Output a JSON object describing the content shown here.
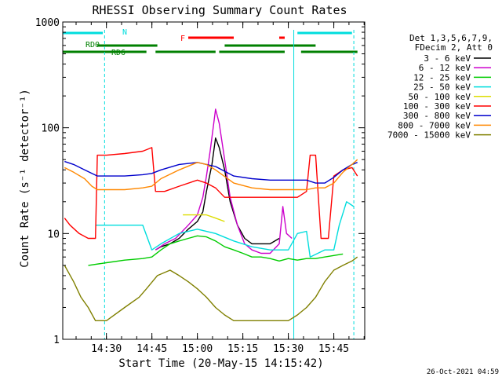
{
  "chart_data": {
    "type": "line",
    "title": "RHESSI Observing Summary Count Rates",
    "xlabel": "Start Time (20-May-15 14:15:42)",
    "ylabel": "Count Rate (s⁻¹ detector⁻¹)",
    "ylog": true,
    "xlim": [
      14.26,
      15.92
    ],
    "ylim": [
      1,
      1000
    ],
    "x_ticks": [
      {
        "value": 14.5,
        "label": "14:30"
      },
      {
        "value": 14.75,
        "label": "14:45"
      },
      {
        "value": 15.0,
        "label": "15:00"
      },
      {
        "value": 15.25,
        "label": "15:15"
      },
      {
        "value": 15.5,
        "label": "15:30"
      },
      {
        "value": 15.75,
        "label": "15:45"
      }
    ],
    "y_ticks": [
      {
        "value": 1,
        "label": "1"
      },
      {
        "value": 10,
        "label": "10"
      },
      {
        "value": 100,
        "label": "100"
      },
      {
        "value": 1000,
        "label": "1000"
      }
    ],
    "legend": {
      "position": "right",
      "header": [
        "Det 1,3,5,6,7,9,",
        "FDecim 2, Att 0"
      ]
    },
    "series": [
      {
        "name": "3 - 6 keV",
        "color": "#000000",
        "points": [
          [
            14.77,
            7
          ],
          [
            14.8,
            7.5
          ],
          [
            14.85,
            8
          ],
          [
            14.9,
            9
          ],
          [
            14.95,
            11
          ],
          [
            15.0,
            13
          ],
          [
            15.03,
            16
          ],
          [
            15.05,
            25
          ],
          [
            15.08,
            45
          ],
          [
            15.1,
            80
          ],
          [
            15.12,
            65
          ],
          [
            15.15,
            40
          ],
          [
            15.18,
            20
          ],
          [
            15.22,
            12
          ],
          [
            15.26,
            9
          ],
          [
            15.3,
            8
          ],
          [
            15.35,
            8
          ],
          [
            15.4,
            8
          ],
          [
            15.45,
            9
          ]
        ]
      },
      {
        "name": "6 - 12 keV",
        "color": "#cc00cc",
        "points": [
          [
            14.77,
            7
          ],
          [
            14.82,
            8
          ],
          [
            14.88,
            9
          ],
          [
            14.95,
            12
          ],
          [
            15.0,
            15
          ],
          [
            15.03,
            22
          ],
          [
            15.05,
            35
          ],
          [
            15.07,
            60
          ],
          [
            15.09,
            110
          ],
          [
            15.1,
            150
          ],
          [
            15.12,
            110
          ],
          [
            15.15,
            50
          ],
          [
            15.18,
            22
          ],
          [
            15.22,
            12
          ],
          [
            15.26,
            8
          ],
          [
            15.3,
            7
          ],
          [
            15.35,
            6.5
          ],
          [
            15.4,
            6.5
          ],
          [
            15.45,
            8
          ],
          [
            15.47,
            18
          ],
          [
            15.49,
            10
          ],
          [
            15.52,
            9
          ]
        ]
      },
      {
        "name": "12 - 25 keV",
        "color": "#00cc00",
        "points": [
          [
            14.4,
            5
          ],
          [
            14.5,
            5.3
          ],
          [
            14.6,
            5.6
          ],
          [
            14.7,
            5.8
          ],
          [
            14.75,
            6
          ],
          [
            14.8,
            7
          ],
          [
            14.85,
            8
          ],
          [
            14.9,
            8.5
          ],
          [
            14.95,
            9
          ],
          [
            15.0,
            9.5
          ],
          [
            15.05,
            9.3
          ],
          [
            15.1,
            8.5
          ],
          [
            15.15,
            7.5
          ],
          [
            15.2,
            7
          ],
          [
            15.25,
            6.5
          ],
          [
            15.3,
            6
          ],
          [
            15.35,
            6
          ],
          [
            15.4,
            5.8
          ],
          [
            15.45,
            5.5
          ],
          [
            15.5,
            5.8
          ],
          [
            15.55,
            5.6
          ],
          [
            15.6,
            5.8
          ],
          [
            15.65,
            5.8
          ],
          [
            15.7,
            6
          ],
          [
            15.75,
            6.2
          ],
          [
            15.8,
            6.4
          ]
        ]
      },
      {
        "name": "25 - 50 keV",
        "color": "#00dddd",
        "points": [
          [
            14.44,
            12
          ],
          [
            14.5,
            12
          ],
          [
            14.6,
            12
          ],
          [
            14.7,
            12
          ],
          [
            14.75,
            7
          ],
          [
            14.8,
            8
          ],
          [
            14.9,
            10
          ],
          [
            15.0,
            11
          ],
          [
            15.1,
            10
          ],
          [
            15.2,
            8.5
          ],
          [
            15.3,
            7.5
          ],
          [
            15.4,
            7
          ],
          [
            15.5,
            7
          ],
          [
            15.55,
            10
          ],
          [
            15.6,
            10.5
          ],
          [
            15.62,
            6
          ],
          [
            15.7,
            7
          ],
          [
            15.75,
            7
          ],
          [
            15.78,
            12
          ],
          [
            15.82,
            20
          ],
          [
            15.86,
            18
          ]
        ]
      },
      {
        "name": "50 - 100 keV",
        "color": "#dddd00",
        "points": [
          [
            14.92,
            15
          ],
          [
            14.97,
            15
          ],
          [
            15.0,
            15
          ],
          [
            15.05,
            15
          ],
          [
            15.1,
            14
          ],
          [
            15.15,
            13
          ]
        ]
      },
      {
        "name": "100 - 300 keV",
        "color": "#ff0000",
        "points": [
          [
            14.27,
            14
          ],
          [
            14.3,
            12
          ],
          [
            14.35,
            10
          ],
          [
            14.4,
            9
          ],
          [
            14.44,
            9
          ],
          [
            14.45,
            55
          ],
          [
            14.5,
            55
          ],
          [
            14.6,
            57
          ],
          [
            14.7,
            60
          ],
          [
            14.75,
            65
          ],
          [
            14.77,
            25
          ],
          [
            14.82,
            25
          ],
          [
            14.9,
            28
          ],
          [
            15.0,
            32
          ],
          [
            15.05,
            30
          ],
          [
            15.1,
            27
          ],
          [
            15.15,
            22
          ],
          [
            15.2,
            22
          ],
          [
            15.25,
            22
          ],
          [
            15.3,
            22
          ],
          [
            15.4,
            22
          ],
          [
            15.5,
            22
          ],
          [
            15.55,
            22
          ],
          [
            15.6,
            25
          ],
          [
            15.62,
            55
          ],
          [
            15.65,
            55
          ],
          [
            15.68,
            9
          ],
          [
            15.7,
            9
          ],
          [
            15.72,
            9
          ],
          [
            15.75,
            35
          ],
          [
            15.8,
            40
          ],
          [
            15.85,
            42
          ],
          [
            15.88,
            35
          ]
        ]
      },
      {
        "name": "300 - 800 keV",
        "color": "#0000cc",
        "points": [
          [
            14.27,
            48
          ],
          [
            14.32,
            45
          ],
          [
            14.38,
            40
          ],
          [
            14.42,
            37
          ],
          [
            14.45,
            35
          ],
          [
            14.5,
            35
          ],
          [
            14.6,
            35
          ],
          [
            14.7,
            36
          ],
          [
            14.75,
            37
          ],
          [
            14.8,
            40
          ],
          [
            14.9,
            45
          ],
          [
            15.0,
            47
          ],
          [
            15.1,
            43
          ],
          [
            15.2,
            35
          ],
          [
            15.3,
            33
          ],
          [
            15.4,
            32
          ],
          [
            15.5,
            32
          ],
          [
            15.6,
            32
          ],
          [
            15.65,
            30
          ],
          [
            15.7,
            30
          ],
          [
            15.75,
            34
          ],
          [
            15.8,
            40
          ],
          [
            15.85,
            45
          ],
          [
            15.88,
            47
          ]
        ]
      },
      {
        "name": "800 - 7000 keV",
        "color": "#ff8800",
        "points": [
          [
            14.27,
            42
          ],
          [
            14.32,
            38
          ],
          [
            14.38,
            33
          ],
          [
            14.42,
            28
          ],
          [
            14.45,
            26
          ],
          [
            14.5,
            26
          ],
          [
            14.6,
            26
          ],
          [
            14.7,
            27
          ],
          [
            14.75,
            28
          ],
          [
            14.8,
            33
          ],
          [
            14.9,
            40
          ],
          [
            15.0,
            47
          ],
          [
            15.05,
            45
          ],
          [
            15.1,
            40
          ],
          [
            15.2,
            30
          ],
          [
            15.3,
            27
          ],
          [
            15.4,
            26
          ],
          [
            15.5,
            26
          ],
          [
            15.6,
            26
          ],
          [
            15.65,
            27
          ],
          [
            15.7,
            27
          ],
          [
            15.75,
            30
          ],
          [
            15.8,
            38
          ],
          [
            15.85,
            45
          ],
          [
            15.88,
            50
          ]
        ]
      },
      {
        "name": "7000 - 15000 keV",
        "color": "#808000",
        "points": [
          [
            14.27,
            5
          ],
          [
            14.32,
            3.5
          ],
          [
            14.36,
            2.5
          ],
          [
            14.4,
            2
          ],
          [
            14.44,
            1.5
          ],
          [
            14.5,
            1.5
          ],
          [
            14.6,
            2
          ],
          [
            14.68,
            2.5
          ],
          [
            14.72,
            3
          ],
          [
            14.78,
            4
          ],
          [
            14.85,
            4.5
          ],
          [
            14.9,
            4
          ],
          [
            14.95,
            3.5
          ],
          [
            15.0,
            3
          ],
          [
            15.05,
            2.5
          ],
          [
            15.1,
            2
          ],
          [
            15.15,
            1.7
          ],
          [
            15.2,
            1.5
          ],
          [
            15.3,
            1.5
          ],
          [
            15.4,
            1.5
          ],
          [
            15.5,
            1.5
          ],
          [
            15.55,
            1.7
          ],
          [
            15.6,
            2
          ],
          [
            15.65,
            2.5
          ],
          [
            15.7,
            3.5
          ],
          [
            15.75,
            4.5
          ],
          [
            15.8,
            5
          ],
          [
            15.85,
            5.5
          ],
          [
            15.88,
            6
          ]
        ]
      }
    ],
    "flag_bars": [
      {
        "label": "N",
        "color": "#00dddd",
        "segments": [
          [
            14.26,
            14.48
          ],
          [
            15.55,
            15.85
          ]
        ]
      },
      {
        "label": "F",
        "color": "#ff0000",
        "segments": [
          [
            14.95,
            15.2
          ],
          [
            15.45,
            15.48
          ]
        ]
      },
      {
        "label": "RD0",
        "color": "#008000",
        "segments": [
          [
            14.45,
            14.78
          ],
          [
            15.15,
            15.65
          ]
        ]
      },
      {
        "label": "RD6",
        "color": "#008000",
        "segments": [
          [
            14.26,
            14.72
          ],
          [
            14.77,
            15.1
          ],
          [
            15.12,
            15.48
          ],
          [
            15.57,
            15.88
          ]
        ]
      }
    ],
    "vlines": [
      {
        "x": 14.49,
        "color": "#00dddd",
        "style": "dashed"
      },
      {
        "x": 15.53,
        "color": "#00dddd",
        "style": "solid"
      },
      {
        "x": 15.86,
        "color": "#00dddd",
        "style": "dashed"
      }
    ],
    "grid": false
  },
  "timestamp": "26-Oct-2021 04:59"
}
